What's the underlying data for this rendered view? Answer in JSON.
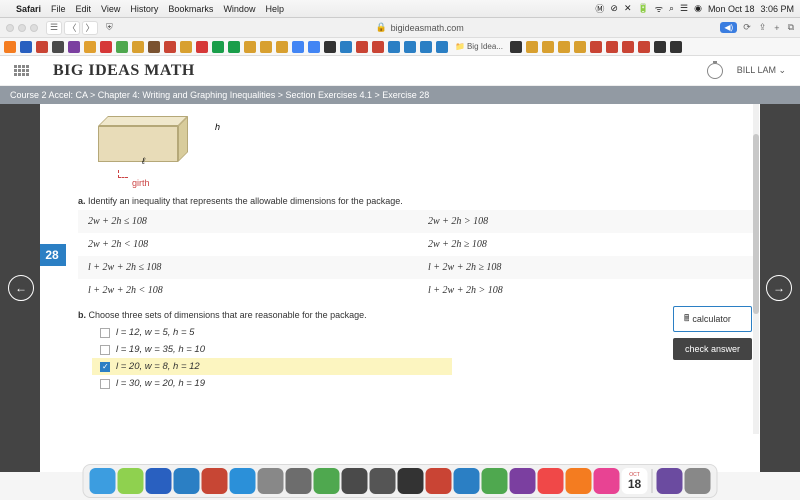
{
  "menubar": {
    "app": "Safari",
    "items": [
      "File",
      "Edit",
      "View",
      "History",
      "Bookmarks",
      "Window",
      "Help"
    ],
    "date": "Mon Oct 18",
    "time": "3:06 PM"
  },
  "browser": {
    "url": "bigideasmath.com",
    "sound_icon": "◀︎)",
    "tab_label": "Big Idea..."
  },
  "bookmarks_colors": [
    "#f47c20",
    "#2960c0",
    "#c94434",
    "#4a4a4a",
    "#7b3fa0",
    "#e0a030",
    "#d63838",
    "#4fa84f",
    "#d8a030",
    "#7a5230",
    "#c94434",
    "#d8a030",
    "#d63838",
    "#1a9e4a",
    "#1a9e4a",
    "#d8a030",
    "#d8a030",
    "#d8a030",
    "#4285f4",
    "#4285f4",
    "#333",
    "#2b7fc4",
    "#c94434",
    "#c94434",
    "#2b7fc4",
    "#2b7fc4",
    "#2b7fc4",
    "#2b7fc4"
  ],
  "bookmarks_right_colors": [
    "#333",
    "#d8a030",
    "#d8a030",
    "#d8a030",
    "#d8a030",
    "#c94434",
    "#c94434",
    "#c94434",
    "#c94434",
    "#333",
    "#333"
  ],
  "site": {
    "logo": "BIG IDEAS MATH",
    "user": "BILL LAM"
  },
  "breadcrumb": "Course 2 Accel: CA > Chapter 4: Writing and Graphing Inequalities > Section Exercises 4.1 > Exercise 28",
  "diagram": {
    "h": "h",
    "l": "ℓ",
    "girth": "girth"
  },
  "exercise_number": "28",
  "part_a": {
    "label": "a.",
    "text": "Identify an inequality that represents the allowable dimensions for the package.",
    "rows": [
      [
        "2w + 2h ≤ 108",
        "2w + 2h > 108"
      ],
      [
        "2w + 2h < 108",
        "2w + 2h ≥ 108"
      ],
      [
        "l + 2w + 2h ≤ 108",
        "l + 2w + 2h ≥ 108"
      ],
      [
        "l + 2w + 2h < 108",
        "l + 2w + 2h > 108"
      ]
    ]
  },
  "part_b": {
    "label": "b.",
    "text": "Choose three sets of dimensions that are reasonable for the package.",
    "choices": [
      {
        "text": "l = 12,  w = 5,  h = 5",
        "checked": false,
        "selected": false
      },
      {
        "text": "l = 19,  w = 35,  h = 10",
        "checked": false,
        "selected": false
      },
      {
        "text": "l = 20,  w = 8,  h = 12",
        "checked": true,
        "selected": true
      },
      {
        "text": "l = 30,  w = 20,  h = 19",
        "checked": false,
        "selected": false
      }
    ]
  },
  "buttons": {
    "calculator": "calculator",
    "check": "check answer"
  },
  "dock": {
    "colors": [
      "#3c9de0",
      "#8fd14f",
      "#2960c0",
      "#2b7fc4",
      "#c74634",
      "#2b90d9",
      "#888",
      "#6d6d6d",
      "#4fa84f",
      "#4a4a4a",
      "#555",
      "#333",
      "#c94434",
      "#2b7fc4",
      "#4fa84f",
      "#7b3fa0",
      "#f04848",
      "#f47c20",
      "#e84393"
    ],
    "cal_month": "OCT",
    "cal_day": "18",
    "right_colors": [
      "#6b4ba0",
      "#888"
    ]
  }
}
